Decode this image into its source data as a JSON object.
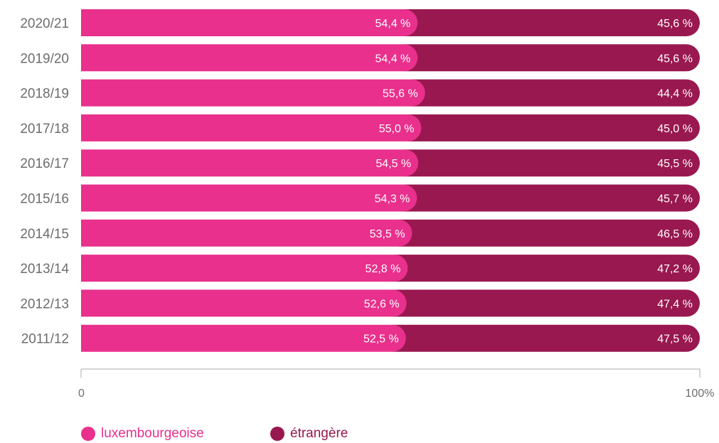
{
  "chart_data": {
    "type": "bar",
    "stacked": true,
    "orientation": "horizontal",
    "categories": [
      "2020/21",
      "2019/20",
      "2018/19",
      "2017/18",
      "2016/17",
      "2015/16",
      "2014/15",
      "2013/14",
      "2012/13",
      "2011/12"
    ],
    "series": [
      {
        "name": "luxembourgeoise",
        "color": "#e8308c",
        "values": [
          54.4,
          54.4,
          55.6,
          55.0,
          54.5,
          54.3,
          53.5,
          52.8,
          52.6,
          52.5
        ],
        "labels": [
          "54,4 %",
          "54,4 %",
          "55,6 %",
          "55,0 %",
          "54,5 %",
          "54,3 %",
          "53,5 %",
          "52,8 %",
          "52,6 %",
          "52,5 %"
        ]
      },
      {
        "name": "étrangère",
        "color": "#99184f",
        "values": [
          45.6,
          45.6,
          44.4,
          45.0,
          45.5,
          45.7,
          46.5,
          47.2,
          47.4,
          47.5
        ],
        "labels": [
          "45,6 %",
          "45,6 %",
          "44,4 %",
          "45,0 %",
          "45,5 %",
          "45,7 %",
          "46,5 %",
          "47,2 %",
          "47,4 %",
          "47,5 %"
        ]
      }
    ],
    "xlim": [
      0,
      100
    ],
    "x_ticks": [
      {
        "value": 0,
        "label": "0"
      },
      {
        "value": 100,
        "label": "100%"
      }
    ],
    "grid": false,
    "legend_position": "bottom-left",
    "colors": {
      "category_label": "#6d6d6d",
      "axis": "#aaaaaa",
      "value_label": "#ffffff"
    }
  },
  "legend": [
    {
      "label": "luxembourgeoise",
      "color": "#e8308c"
    },
    {
      "label": "étrangère",
      "color": "#99184f"
    }
  ]
}
